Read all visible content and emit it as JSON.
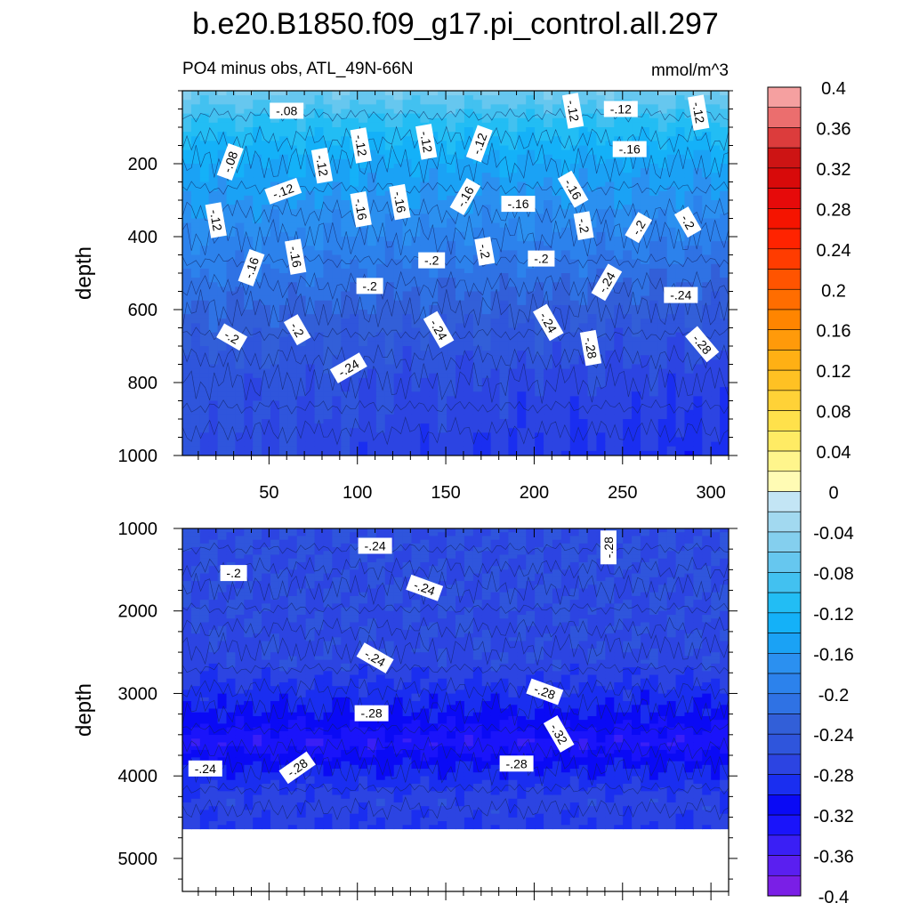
{
  "chart_data": {
    "type": "heatmap",
    "title": "b.e20.B1850.f09_g17.pi_control.all.297",
    "subtitle": "PO4 minus obs, ATL_49N-66N",
    "units": "mmol/m^3",
    "colorbar": {
      "levels": [
        -0.4,
        -0.38,
        -0.36,
        -0.34,
        -0.32,
        -0.3,
        -0.28,
        -0.26,
        -0.24,
        -0.22,
        -0.2,
        -0.18,
        -0.16,
        -0.14,
        -0.12,
        -0.1,
        -0.08,
        -0.06,
        -0.04,
        -0.02,
        0,
        0.02,
        0.04,
        0.06,
        0.08,
        0.1,
        0.12,
        0.14,
        0.16,
        0.18,
        0.2,
        0.22,
        0.24,
        0.26,
        0.28,
        0.3,
        0.32,
        0.34,
        0.36,
        0.38,
        0.4
      ],
      "colors": [
        "#7a1fe6",
        "#5a1ff0",
        "#3a1ff5",
        "#1a14fa",
        "#0a0af5",
        "#1a2ef0",
        "#2c44e2",
        "#2f55dc",
        "#325fd8",
        "#2f72e4",
        "#2c82ec",
        "#2b90f0",
        "#1aa2f5",
        "#14b1f8",
        "#22bdf4",
        "#42c1f0",
        "#66c7ef",
        "#84cfee",
        "#a2d9f0",
        "#c3e5f5",
        "#fffbb4",
        "#fff58c",
        "#ffeb64",
        "#ffe14b",
        "#ffd237",
        "#ffc123",
        "#ffb014",
        "#ff9a0a",
        "#ff8500",
        "#ff6d00",
        "#ff5400",
        "#ff3c00",
        "#ff2300",
        "#f51400",
        "#e60a0a",
        "#d80a0a",
        "#cd1414",
        "#dc3c3c",
        "#eb6e6e",
        "#f5a0a0"
      ],
      "tick_labels": [
        "-0.4",
        "-0.36",
        "-0.32",
        "-0.28",
        "-0.24",
        "-0.2",
        "-0.16",
        "-0.12",
        "-0.08",
        "-0.04",
        "0",
        "0.04",
        "0.08",
        "0.12",
        "0.16",
        "0.2",
        "0.24",
        "0.28",
        "0.32",
        "0.36",
        "0.4"
      ]
    },
    "panels": [
      {
        "name": "upper",
        "ylabel": "depth",
        "xlim": [
          1,
          310
        ],
        "ylim": [
          1000,
          0
        ],
        "xticks": [
          50,
          100,
          150,
          200,
          250,
          300
        ],
        "yticks": [
          200,
          400,
          600,
          800,
          1000
        ],
        "field_profile": [
          [
            0,
            -0.06
          ],
          [
            80,
            -0.1
          ],
          [
            200,
            -0.14
          ],
          [
            350,
            -0.17
          ],
          [
            500,
            -0.2
          ],
          [
            650,
            -0.23
          ],
          [
            800,
            -0.25
          ],
          [
            1000,
            -0.26
          ]
        ],
        "x_gradient": -0.03,
        "contour_labels": [
          {
            "text": "-.08",
            "x": 60,
            "y": 55,
            "angle": 0
          },
          {
            "text": "-.08",
            "x": 28,
            "y": 195,
            "angle": 70
          },
          {
            "text": "-.12",
            "x": 58,
            "y": 275,
            "angle": 20
          },
          {
            "text": "-.12",
            "x": 80,
            "y": 205,
            "angle": -80
          },
          {
            "text": "-.12",
            "x": 102,
            "y": 150,
            "angle": -80
          },
          {
            "text": "-.12",
            "x": 139,
            "y": 140,
            "angle": -80
          },
          {
            "text": "-.12",
            "x": 169,
            "y": 145,
            "angle": 70
          },
          {
            "text": "-.12",
            "x": 222,
            "y": 55,
            "angle": -80
          },
          {
            "text": "-.12",
            "x": 249,
            "y": 50,
            "angle": 0
          },
          {
            "text": "-.12",
            "x": 293,
            "y": 60,
            "angle": -80
          },
          {
            "text": "-.12",
            "x": 20,
            "y": 355,
            "angle": -80
          },
          {
            "text": "-.16",
            "x": 102,
            "y": 325,
            "angle": -80
          },
          {
            "text": "-.16",
            "x": 124,
            "y": 305,
            "angle": -80
          },
          {
            "text": "-.16",
            "x": 161,
            "y": 290,
            "angle": 60
          },
          {
            "text": "-.16",
            "x": 191,
            "y": 310,
            "angle": 0
          },
          {
            "text": "-.16",
            "x": 222,
            "y": 270,
            "angle": -60
          },
          {
            "text": "-.16",
            "x": 254,
            "y": 160,
            "angle": 0
          },
          {
            "text": "-.16",
            "x": 65,
            "y": 455,
            "angle": -80
          },
          {
            "text": "-.16",
            "x": 40,
            "y": 485,
            "angle": 70
          },
          {
            "text": "-.2",
            "x": 228,
            "y": 370,
            "angle": -80
          },
          {
            "text": "-.2",
            "x": 259,
            "y": 375,
            "angle": 60
          },
          {
            "text": "-.2",
            "x": 287,
            "y": 360,
            "angle": -60
          },
          {
            "text": "-.2",
            "x": 172,
            "y": 440,
            "angle": -80
          },
          {
            "text": "-.2",
            "x": 142,
            "y": 465,
            "angle": 0
          },
          {
            "text": "-.2",
            "x": 204,
            "y": 460,
            "angle": 0
          },
          {
            "text": "-.2",
            "x": 107,
            "y": 535,
            "angle": 0
          },
          {
            "text": "-.2",
            "x": 66,
            "y": 655,
            "angle": -60
          },
          {
            "text": "-.2",
            "x": 29,
            "y": 675,
            "angle": -30
          },
          {
            "text": "-.24",
            "x": 241,
            "y": 525,
            "angle": 60
          },
          {
            "text": "-.24",
            "x": 283,
            "y": 560,
            "angle": 0
          },
          {
            "text": "-.24",
            "x": 146,
            "y": 655,
            "angle": -60
          },
          {
            "text": "-.24",
            "x": 208,
            "y": 635,
            "angle": -60
          },
          {
            "text": "-.24",
            "x": 95,
            "y": 760,
            "angle": 30
          },
          {
            "text": "-.28",
            "x": 232,
            "y": 705,
            "angle": -80
          },
          {
            "text": "-.28",
            "x": 295,
            "y": 695,
            "angle": -50
          }
        ]
      },
      {
        "name": "lower",
        "ylabel": "depth",
        "xlim": [
          1,
          310
        ],
        "ylim": [
          5400,
          1000
        ],
        "yticks": [
          1000,
          2000,
          3000,
          4000,
          5000
        ],
        "data_bottom": 4640,
        "field_profile": [
          [
            1000,
            -0.26
          ],
          [
            1700,
            -0.26
          ],
          [
            2600,
            -0.265
          ],
          [
            3200,
            -0.3
          ],
          [
            3600,
            -0.335
          ],
          [
            3900,
            -0.3
          ],
          [
            4300,
            -0.27
          ],
          [
            4640,
            -0.28
          ]
        ],
        "contour_labels": [
          {
            "text": "-.24",
            "x": 110,
            "y": 1210,
            "angle": 0
          },
          {
            "text": "-.2",
            "x": 30,
            "y": 1540,
            "angle": 0
          },
          {
            "text": "-.28",
            "x": 242,
            "y": 1230,
            "angle": 90
          },
          {
            "text": "-.24",
            "x": 138,
            "y": 1720,
            "angle": -20
          },
          {
            "text": "-.24",
            "x": 110,
            "y": 2570,
            "angle": -30
          },
          {
            "text": "-.28",
            "x": 206,
            "y": 2980,
            "angle": -20
          },
          {
            "text": "-.28",
            "x": 108,
            "y": 3240,
            "angle": 0
          },
          {
            "text": "-.32",
            "x": 214,
            "y": 3490,
            "angle": -60
          },
          {
            "text": "-.28",
            "x": 190,
            "y": 3850,
            "angle": 0
          },
          {
            "text": "-.24",
            "x": 14,
            "y": 3910,
            "angle": 0
          },
          {
            "text": "-.28",
            "x": 66,
            "y": 3900,
            "angle": 35
          }
        ]
      }
    ]
  }
}
